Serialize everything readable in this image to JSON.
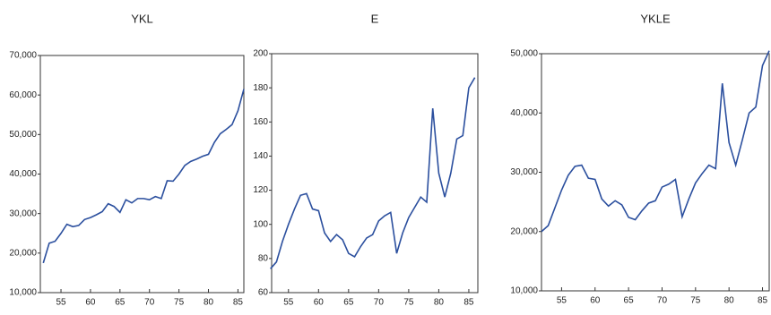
{
  "chart_data": [
    {
      "type": "line",
      "title": "YKL",
      "x": [
        52,
        53,
        54,
        55,
        56,
        57,
        58,
        59,
        60,
        61,
        62,
        63,
        64,
        65,
        66,
        67,
        68,
        69,
        70,
        71,
        72,
        73,
        74,
        75,
        76,
        77,
        78,
        79,
        80,
        81,
        82,
        83,
        84,
        85,
        86
      ],
      "series": [
        {
          "name": "YKL",
          "color": "#2b4f9e",
          "values": [
            17500,
            22500,
            23000,
            25000,
            27300,
            26700,
            27000,
            28500,
            29000,
            29700,
            30500,
            32500,
            31800,
            30300,
            33500,
            32700,
            33800,
            33800,
            33500,
            34300,
            33800,
            38300,
            38200,
            40000,
            42200,
            43200,
            43800,
            44500,
            45000,
            48000,
            50200,
            51300,
            52500,
            56000,
            61500
          ]
        }
      ],
      "xlim": [
        51.5,
        86
      ],
      "xticks": [
        55,
        60,
        65,
        70,
        75,
        80,
        85
      ],
      "ylim": [
        10000,
        70000
      ],
      "yticks": [
        {
          "value": 10000,
          "label": "10,000"
        },
        {
          "value": 20000,
          "label": "20,000"
        },
        {
          "value": 30000,
          "label": "30,000"
        },
        {
          "value": 40000,
          "label": "40,000"
        },
        {
          "value": 50000,
          "label": "50,000"
        },
        {
          "value": 60000,
          "label": "60,000"
        },
        {
          "value": 70000,
          "label": "70,000"
        }
      ]
    },
    {
      "type": "line",
      "title": "E",
      "x": [
        52,
        53,
        54,
        55,
        56,
        57,
        58,
        59,
        60,
        61,
        62,
        63,
        64,
        65,
        66,
        67,
        68,
        69,
        70,
        71,
        72,
        73,
        74,
        75,
        76,
        77,
        78,
        79,
        80,
        81,
        82,
        83,
        84,
        85,
        86
      ],
      "series": [
        {
          "name": "E",
          "color": "#2b4f9e",
          "values": [
            74,
            78,
            90,
            100,
            109,
            117,
            118,
            109,
            108,
            95,
            90,
            94,
            91,
            83,
            81,
            87,
            92,
            94,
            102,
            105,
            107,
            83,
            95,
            104,
            110,
            116,
            113,
            168,
            130,
            116,
            130,
            150,
            152,
            180,
            186
          ]
        }
      ],
      "xlim": [
        52.2,
        86.5
      ],
      "xticks": [
        55,
        60,
        65,
        70,
        75,
        80,
        85
      ],
      "ylim": [
        60,
        200
      ],
      "yticks": [
        60,
        80,
        100,
        120,
        140,
        160,
        180,
        200
      ]
    },
    {
      "type": "line",
      "title": "YKLE",
      "x": [
        52,
        53,
        54,
        55,
        56,
        57,
        58,
        59,
        60,
        61,
        62,
        63,
        64,
        65,
        66,
        67,
        68,
        69,
        70,
        71,
        72,
        73,
        74,
        75,
        76,
        77,
        78,
        79,
        80,
        81,
        82,
        83,
        84,
        85,
        86
      ],
      "series": [
        {
          "name": "YKLE",
          "color": "#2b4f9e",
          "values": [
            20000,
            21000,
            24000,
            27000,
            29500,
            31000,
            31200,
            29000,
            28800,
            25500,
            24300,
            25200,
            24500,
            22400,
            22000,
            23500,
            24800,
            25200,
            27500,
            28000,
            28800,
            22500,
            25500,
            28200,
            29800,
            31200,
            30600,
            45000,
            35000,
            31200,
            35500,
            40000,
            41000,
            48000,
            50500
          ]
        }
      ],
      "xlim": [
        52,
        86
      ],
      "xticks": [
        55,
        60,
        65,
        70,
        75,
        80,
        85
      ],
      "ylim": [
        10000,
        50000
      ],
      "yticks": [
        {
          "value": 10000,
          "label": "10,000"
        },
        {
          "value": 20000,
          "label": "20,000"
        },
        {
          "value": 30000,
          "label": "30,000"
        },
        {
          "value": 40000,
          "label": "40,000"
        },
        {
          "value": 50000,
          "label": "50,000"
        }
      ]
    }
  ]
}
